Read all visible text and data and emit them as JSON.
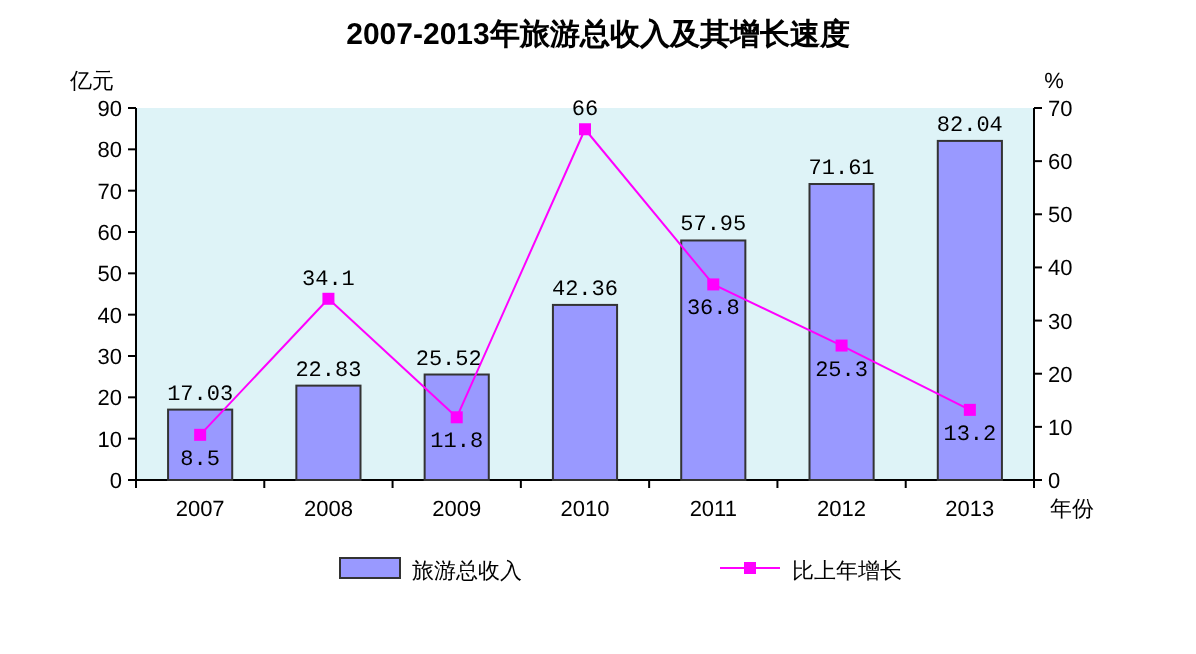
{
  "chart_data": {
    "type": "bar",
    "title": "2007-2013年旅游总收入及其增长速度",
    "xlabel": "年份",
    "ylabel": "亿元",
    "y2label": "%",
    "categories": [
      "2007",
      "2008",
      "2009",
      "2010",
      "2011",
      "2012",
      "2013"
    ],
    "series": [
      {
        "name": "旅游总收入",
        "color": "#9999ff",
        "values": [
          17.03,
          22.83,
          25.52,
          42.36,
          57.95,
          71.61,
          82.04
        ]
      },
      {
        "name": "比上年增长",
        "type": "line",
        "axis": "y2",
        "color": "#ff00ff",
        "values": [
          8.5,
          34.1,
          11.8,
          66,
          36.8,
          25.3,
          13.2
        ]
      }
    ],
    "ylim": [
      0,
      90
    ],
    "yticks": [
      0,
      10,
      20,
      30,
      40,
      50,
      60,
      70,
      80,
      90
    ],
    "y2lim": [
      0,
      70
    ],
    "y2ticks": [
      0,
      10,
      20,
      30,
      40,
      50,
      60,
      70
    ],
    "data_labels": true,
    "legend": "bottom",
    "marker": "square"
  }
}
